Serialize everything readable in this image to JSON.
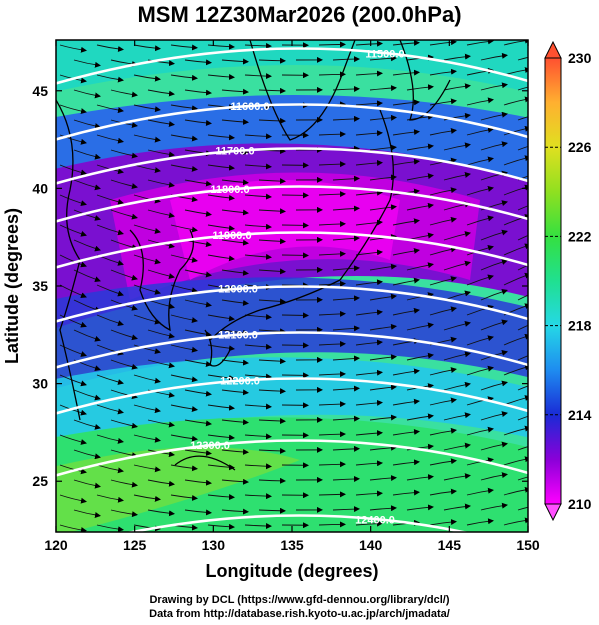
{
  "title": "MSM 12Z30Mar2026 (200.0hPa)",
  "credits": {
    "line1": "Drawing by DCL (https://www.gfd-dennou.org/library/dcl/)",
    "line2": "Data from http://database.rish.kyoto-u.ac.jp/arch/jmadata/"
  },
  "chart_data": {
    "type": "heatmap",
    "xlabel": "Longitude (degrees)",
    "ylabel": "Latitude  (degrees)",
    "xlim": [
      120,
      150
    ],
    "ylim": [
      22.4,
      47.6
    ],
    "x_ticks": [
      "120",
      "125",
      "130",
      "135",
      "140",
      "145",
      "150"
    ],
    "y_ticks": [
      "25",
      "30",
      "35",
      "40",
      "45"
    ],
    "colorbar": {
      "range": [
        210,
        230
      ],
      "tick_labels": [
        "230",
        "226",
        "222",
        "218",
        "214",
        "210"
      ],
      "colors": [
        "#ff00ff",
        "#8a00d8",
        "#1a2bd6",
        "#1e8cf0",
        "#25d8e6",
        "#20e090",
        "#35e040",
        "#90e020",
        "#e0e020",
        "#ffb030",
        "#ff5030"
      ]
    },
    "contours": [
      {
        "label": "11500.0",
        "value": 11500
      },
      {
        "label": "11600.0",
        "value": 11600
      },
      {
        "label": "11700.0",
        "value": 11700
      },
      {
        "label": "11800.0",
        "value": 11800
      },
      {
        "label": "11900.0",
        "value": 11900
      },
      {
        "label": "12000.0",
        "value": 12000
      },
      {
        "label": "12100.0",
        "value": 12100
      },
      {
        "label": "12200.0",
        "value": 12200
      },
      {
        "label": "12300.0",
        "value": 12300
      },
      {
        "label": "12400.0",
        "value": 12400
      }
    ]
  }
}
